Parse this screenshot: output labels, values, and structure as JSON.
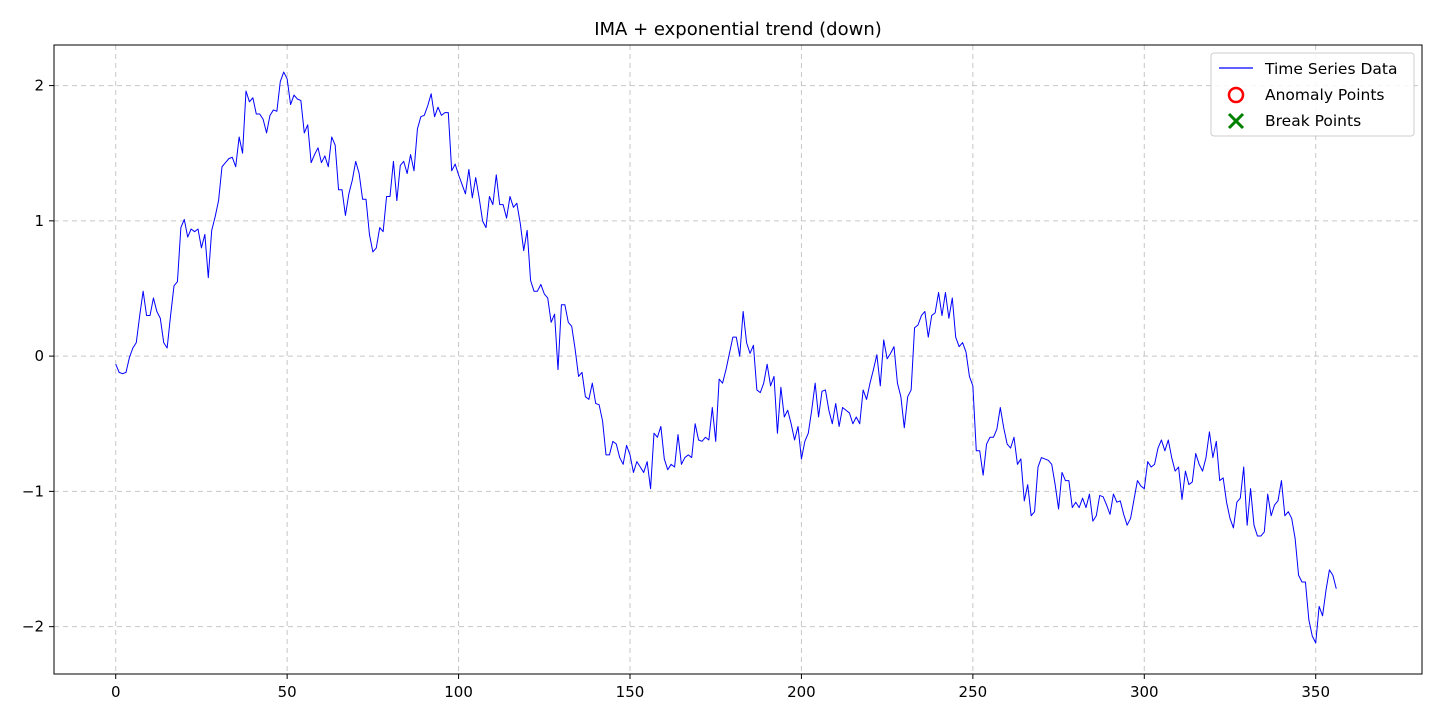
{
  "chart_data": {
    "type": "line",
    "title": "IMA + exponential trend (down)",
    "xlabel": "",
    "ylabel": "",
    "xlim": [
      -18,
      381
    ],
    "ylim": [
      -2.35,
      2.3
    ],
    "x_ticks": [
      0,
      50,
      100,
      150,
      200,
      250,
      300,
      350
    ],
    "y_ticks": [
      -2,
      -1,
      0,
      1,
      2
    ],
    "y_tick_labels": [
      "−2",
      "−1",
      "0",
      "1",
      "2"
    ],
    "grid": true,
    "legend_position": "top-right",
    "colors": {
      "series": "#0000ff",
      "anomaly": "#ff0000",
      "break": "#008000"
    },
    "legend": [
      {
        "label": "Time Series Data",
        "marker": "line"
      },
      {
        "label": "Anomaly Points",
        "marker": "circle"
      },
      {
        "label": "Break Points",
        "marker": "x"
      }
    ],
    "series": [
      {
        "name": "Time Series Data",
        "x_start": 0,
        "x_step": 1,
        "values": [
          -0.06,
          -0.12,
          -0.13,
          -0.12,
          -0.01,
          0.06,
          0.1,
          0.3,
          0.48,
          0.3,
          0.3,
          0.43,
          0.33,
          0.28,
          0.1,
          0.06,
          0.3,
          0.52,
          0.55,
          0.95,
          1.01,
          0.88,
          0.94,
          0.92,
          0.94,
          0.8,
          0.9,
          0.58,
          0.93,
          1.03,
          1.15,
          1.4,
          1.43,
          1.46,
          1.47,
          1.4,
          1.62,
          1.5,
          1.96,
          1.88,
          1.91,
          1.79,
          1.79,
          1.75,
          1.65,
          1.78,
          1.82,
          1.81,
          2.03,
          2.1,
          2.05,
          1.86,
          1.93,
          1.9,
          1.89,
          1.65,
          1.71,
          1.43,
          1.49,
          1.54,
          1.43,
          1.48,
          1.4,
          1.62,
          1.56,
          1.23,
          1.23,
          1.04,
          1.2,
          1.3,
          1.44,
          1.35,
          1.16,
          1.16,
          0.9,
          0.77,
          0.8,
          0.95,
          0.92,
          1.18,
          1.18,
          1.44,
          1.15,
          1.41,
          1.44,
          1.35,
          1.49,
          1.37,
          1.68,
          1.77,
          1.78,
          1.85,
          1.94,
          1.77,
          1.84,
          1.78,
          1.8,
          1.8,
          1.37,
          1.42,
          1.34,
          1.27,
          1.2,
          1.38,
          1.17,
          1.32,
          1.17,
          1.0,
          0.95,
          1.18,
          1.12,
          1.34,
          1.12,
          1.12,
          1.02,
          1.18,
          1.1,
          1.13,
          0.98,
          0.78,
          0.93,
          0.56,
          0.48,
          0.48,
          0.53,
          0.46,
          0.43,
          0.25,
          0.31,
          -0.1,
          0.38,
          0.38,
          0.25,
          0.22,
          0.05,
          -0.15,
          -0.12,
          -0.3,
          -0.32,
          -0.2,
          -0.35,
          -0.36,
          -0.48,
          -0.73,
          -0.73,
          -0.63,
          -0.65,
          -0.75,
          -0.8,
          -0.66,
          -0.73,
          -0.86,
          -0.78,
          -0.82,
          -0.86,
          -0.78,
          -0.98,
          -0.57,
          -0.6,
          -0.52,
          -0.76,
          -0.84,
          -0.8,
          -0.82,
          -0.58,
          -0.8,
          -0.75,
          -0.73,
          -0.75,
          -0.5,
          -0.62,
          -0.63,
          -0.6,
          -0.62,
          -0.38,
          -0.63,
          -0.17,
          -0.2,
          -0.1,
          0.02,
          0.14,
          0.14,
          0.0,
          0.33,
          0.1,
          0.02,
          0.08,
          -0.25,
          -0.27,
          -0.2,
          -0.06,
          -0.22,
          -0.15,
          -0.57,
          -0.23,
          -0.45,
          -0.4,
          -0.5,
          -0.62,
          -0.52,
          -0.76,
          -0.63,
          -0.57,
          -0.4,
          -0.2,
          -0.45,
          -0.26,
          -0.25,
          -0.4,
          -0.5,
          -0.35,
          -0.52,
          -0.38,
          -0.4,
          -0.42,
          -0.5,
          -0.45,
          -0.5,
          -0.25,
          -0.32,
          -0.2,
          -0.1,
          0.01,
          -0.22,
          0.12,
          -0.02,
          0.02,
          0.07,
          -0.2,
          -0.3,
          -0.53,
          -0.3,
          -0.25,
          0.21,
          0.23,
          0.3,
          0.33,
          0.14,
          0.3,
          0.32,
          0.47,
          0.3,
          0.47,
          0.28,
          0.43,
          0.14,
          0.07,
          0.1,
          0.03,
          -0.15,
          -0.22,
          -0.7,
          -0.7,
          -0.88,
          -0.65,
          -0.6,
          -0.6,
          -0.54,
          -0.38,
          -0.53,
          -0.65,
          -0.68,
          -0.6,
          -0.8,
          -0.76,
          -1.07,
          -0.95,
          -1.18,
          -1.15,
          -0.82,
          -0.75,
          -0.76,
          -0.77,
          -0.8,
          -0.95,
          -1.13,
          -0.86,
          -0.92,
          -0.92,
          -1.12,
          -1.08,
          -1.12,
          -1.05,
          -1.12,
          -1.02,
          -1.22,
          -1.18,
          -1.03,
          -1.04,
          -1.1,
          -1.17,
          -1.02,
          -1.08,
          -1.07,
          -1.17,
          -1.25,
          -1.2,
          -1.06,
          -0.92,
          -0.96,
          -0.98,
          -0.78,
          -0.82,
          -0.8,
          -0.68,
          -0.62,
          -0.7,
          -0.62,
          -0.75,
          -0.85,
          -0.82,
          -1.06,
          -0.85,
          -0.95,
          -0.93,
          -0.72,
          -0.8,
          -0.85,
          -0.75,
          -0.56,
          -0.75,
          -0.63,
          -0.92,
          -0.9,
          -1.08,
          -1.2,
          -1.27,
          -1.08,
          -1.05,
          -0.82,
          -1.25,
          -0.98,
          -1.25,
          -1.33,
          -1.33,
          -1.3,
          -1.02,
          -1.18,
          -1.1,
          -1.07,
          -0.92,
          -1.18,
          -1.15,
          -1.2,
          -1.35,
          -1.62,
          -1.67,
          -1.67,
          -1.95,
          -2.07,
          -2.12,
          -1.85,
          -1.92,
          -1.73,
          -1.58,
          -1.62,
          -1.72
        ]
      }
    ],
    "anomaly_points": [],
    "break_points": []
  }
}
